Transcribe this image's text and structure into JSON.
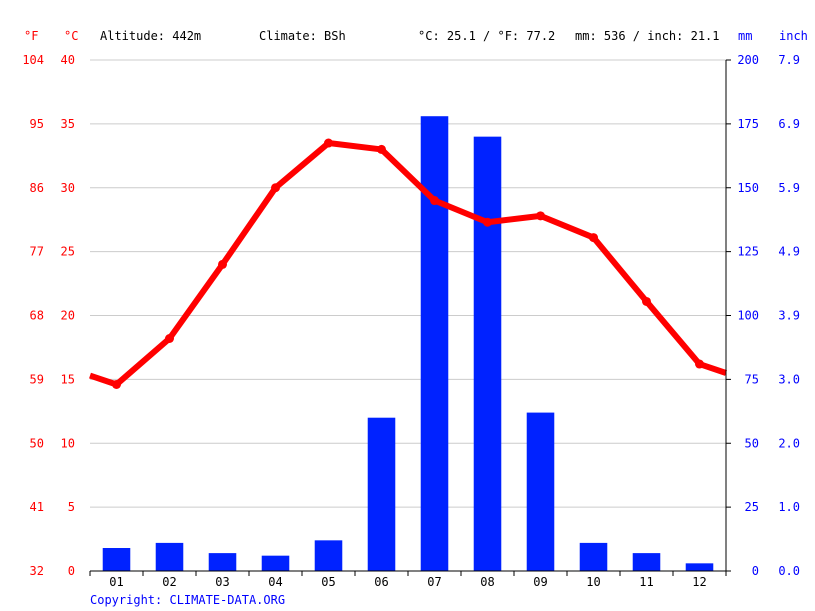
{
  "header": {
    "unit_f": "°F",
    "unit_c": "°C",
    "altitude": "Altitude: 442m",
    "climate": "Climate: BSh",
    "temp_avg": "°C: 25.1 / °F: 77.2",
    "precip_total": "mm: 536 / inch: 21.1",
    "unit_mm": "mm",
    "unit_inch": "inch"
  },
  "copyright": "Copyright: CLIMATE-DATA.ORG",
  "colors": {
    "temperature": "#ff0000",
    "precipitation": "#0022ff",
    "grid": "#cccccc",
    "axis": "#000000",
    "right_axis_labels": "#0000ff",
    "left_axis_labels": "#ff0000"
  },
  "chart_data": {
    "type": "bar+line",
    "categories": [
      "01",
      "02",
      "03",
      "04",
      "05",
      "06",
      "07",
      "08",
      "09",
      "10",
      "11",
      "12"
    ],
    "axes": {
      "left_f_ticks": [
        "104",
        "95",
        "86",
        "77",
        "68",
        "59",
        "50",
        "41",
        "32"
      ],
      "left_c_ticks": [
        "40",
        "35",
        "30",
        "25",
        "20",
        "15",
        "10",
        "5",
        "0"
      ],
      "right_mm_ticks": [
        "200",
        "175",
        "150",
        "125",
        "100",
        "75",
        "50",
        "25",
        "0"
      ],
      "right_inch_ticks": [
        "7.9",
        "6.9",
        "5.9",
        "4.9",
        "3.9",
        "3.0",
        "2.0",
        "1.0",
        "0.0"
      ],
      "c_range": [
        0,
        40
      ],
      "mm_range": [
        0,
        200
      ]
    },
    "series": [
      {
        "name": "Precipitation (mm)",
        "type": "bar",
        "axis": "mm",
        "values": [
          9,
          11,
          7,
          6,
          12,
          60,
          178,
          170,
          62,
          11,
          7,
          3
        ]
      },
      {
        "name": "Temperature (°C)",
        "type": "line",
        "axis": "c",
        "values": [
          14.6,
          18.2,
          24.0,
          30.0,
          33.5,
          33.0,
          29.0,
          27.3,
          27.8,
          26.1,
          21.1,
          16.2
        ],
        "edge_start": 15.3,
        "edge_end": 15.5
      }
    ],
    "grid": true
  }
}
